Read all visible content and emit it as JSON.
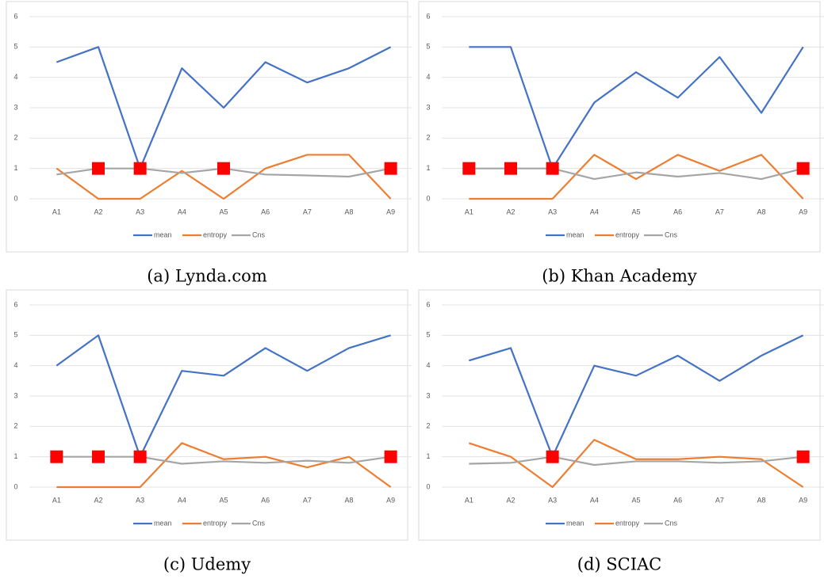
{
  "chart_data": [
    {
      "type": "line",
      "caption": "(a) Lynda.com",
      "categories": [
        "A1",
        "A2",
        "A3",
        "A4",
        "A5",
        "A6",
        "A7",
        "A8",
        "A9"
      ],
      "ylim": [
        0,
        6
      ],
      "yticks": [
        0,
        1,
        2,
        3,
        4,
        5,
        6
      ],
      "grid": true,
      "legend": "bottom",
      "series": [
        {
          "name": "mean",
          "color": "#4472c4",
          "values": [
            4.5,
            5,
            1,
            4.3,
            3,
            4.5,
            3.83,
            4.3,
            5
          ]
        },
        {
          "name": "entropy",
          "color": "#ed7d31",
          "values": [
            1,
            0,
            0,
            0.92,
            0,
            1,
            1.45,
            1.45,
            0
          ]
        },
        {
          "name": "Cns",
          "color": "#a5a5a5",
          "values": [
            0.8,
            1,
            1,
            0.85,
            1,
            0.8,
            0.77,
            0.73,
            1
          ]
        },
        {
          "color": "#ff0000",
          "marker": "square",
          "values": [
            null,
            1,
            1,
            null,
            1,
            null,
            null,
            null,
            1
          ]
        }
      ]
    },
    {
      "type": "line",
      "caption": "(b) Khan Academy",
      "categories": [
        "A1",
        "A2",
        "A3",
        "A4",
        "A5",
        "A6",
        "A7",
        "A8",
        "A9"
      ],
      "ylim": [
        0,
        6
      ],
      "yticks": [
        0,
        1,
        2,
        3,
        4,
        5,
        6
      ],
      "grid": true,
      "legend": "bottom",
      "series": [
        {
          "name": "mean",
          "color": "#4472c4",
          "values": [
            5,
            5,
            1,
            3.17,
            4.17,
            3.33,
            4.67,
            2.83,
            5
          ]
        },
        {
          "name": "entropy",
          "color": "#ed7d31",
          "values": [
            0,
            0,
            0,
            1.45,
            0.65,
            1.45,
            0.92,
            1.45,
            0
          ]
        },
        {
          "name": "Cns",
          "color": "#a5a5a5",
          "values": [
            1,
            1,
            1,
            0.65,
            0.87,
            0.73,
            0.85,
            0.65,
            1
          ]
        },
        {
          "color": "#ff0000",
          "marker": "square",
          "values": [
            1,
            1,
            1,
            null,
            null,
            null,
            null,
            null,
            1
          ]
        }
      ]
    },
    {
      "type": "line",
      "caption": "(c) Udemy",
      "categories": [
        "A1",
        "A2",
        "A3",
        "A4",
        "A5",
        "A6",
        "A7",
        "A8",
        "A9"
      ],
      "ylim": [
        0,
        6
      ],
      "yticks": [
        0,
        1,
        2,
        3,
        4,
        5,
        6
      ],
      "grid": true,
      "legend": "bottom",
      "series": [
        {
          "name": "mean",
          "color": "#4472c4",
          "values": [
            4,
            5,
            1,
            3.83,
            3.67,
            4.58,
            3.83,
            4.58,
            5
          ]
        },
        {
          "name": "entropy",
          "color": "#ed7d31",
          "values": [
            0,
            0,
            0,
            1.45,
            0.92,
            1,
            0.65,
            1,
            0
          ]
        },
        {
          "name": "Cns",
          "color": "#a5a5a5",
          "values": [
            1,
            1,
            1,
            0.77,
            0.85,
            0.8,
            0.87,
            0.8,
            1
          ]
        },
        {
          "color": "#ff0000",
          "marker": "square",
          "values": [
            1,
            1,
            1,
            null,
            null,
            null,
            null,
            null,
            1
          ]
        }
      ]
    },
    {
      "type": "line",
      "caption": "(d) SCIAC",
      "categories": [
        "A1",
        "A2",
        "A3",
        "A4",
        "A5",
        "A6",
        "A7",
        "A8",
        "A9"
      ],
      "ylim": [
        0,
        6
      ],
      "yticks": [
        0,
        1,
        2,
        3,
        4,
        5,
        6
      ],
      "grid": true,
      "legend": "bottom",
      "series": [
        {
          "name": "mean",
          "color": "#4472c4",
          "values": [
            4.17,
            4.58,
            1,
            4,
            3.67,
            4.33,
            3.5,
            4.33,
            5
          ]
        },
        {
          "name": "entropy",
          "color": "#ed7d31",
          "values": [
            1.45,
            1,
            0,
            1.56,
            0.92,
            0.92,
            1,
            0.92,
            0
          ]
        },
        {
          "name": "Cns",
          "color": "#a5a5a5",
          "values": [
            0.77,
            0.8,
            1,
            0.73,
            0.85,
            0.85,
            0.8,
            0.85,
            1
          ]
        },
        {
          "color": "#ff0000",
          "marker": "square",
          "values": [
            null,
            null,
            1,
            null,
            null,
            null,
            null,
            null,
            1
          ]
        }
      ]
    }
  ]
}
